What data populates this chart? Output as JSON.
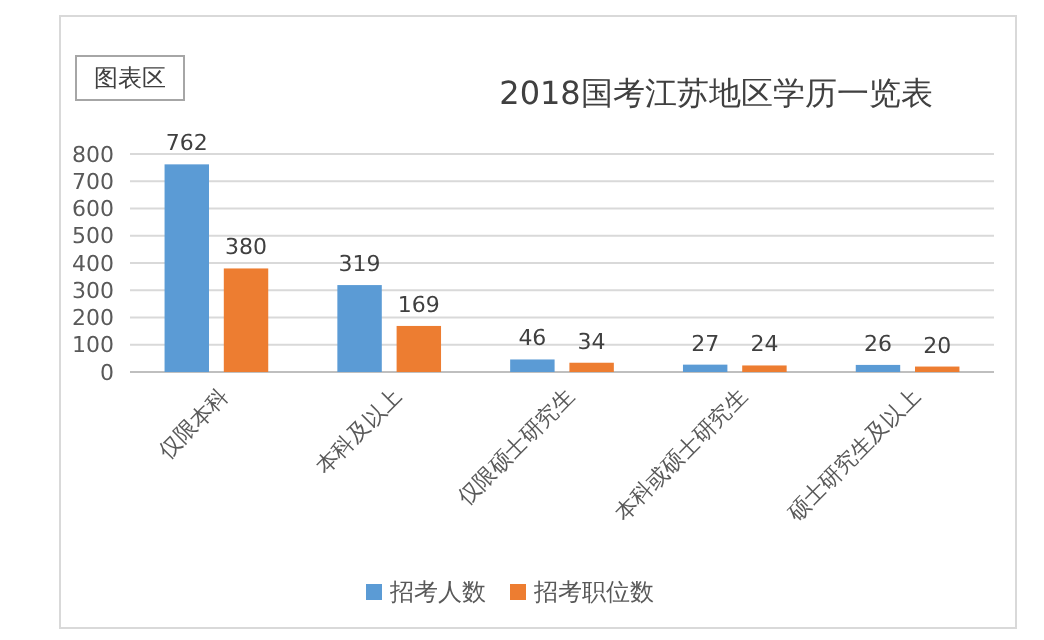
{
  "chart_data": {
    "type": "bar",
    "title": "2018国考江苏地区学历一览表",
    "categories": [
      "仅限本科",
      "本科及以上",
      "仅限硕士研究生",
      "本科或硕士研究生",
      "硕士研究生及以上"
    ],
    "series": [
      {
        "name": "招考人数",
        "color": "#5b9bd5",
        "values": [
          762,
          319,
          46,
          27,
          26
        ]
      },
      {
        "name": "招考职位数",
        "color": "#ed7d31",
        "values": [
          380,
          169,
          34,
          24,
          20
        ]
      }
    ],
    "ylim": [
      0,
      800
    ],
    "yticks": [
      0,
      100,
      200,
      300,
      400,
      500,
      600,
      700,
      800
    ],
    "grid": "y",
    "data_labels": true,
    "legend": "bottom",
    "annotations": [
      "图表区"
    ]
  }
}
